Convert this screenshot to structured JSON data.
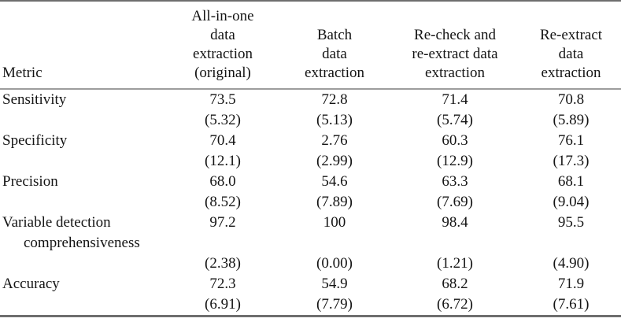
{
  "table": {
    "columns": [
      {
        "label": "Metric"
      },
      {
        "label": "All-in-one\ndata\nextraction\n(original)"
      },
      {
        "label": "Batch\ndata\nextraction"
      },
      {
        "label": "Re-check and\nre-extract data\nextraction"
      },
      {
        "label": "Re-extract\ndata\nextraction"
      }
    ],
    "rows": [
      {
        "cells": [
          "Sensitivity",
          "73.5",
          "72.8",
          "71.4",
          "70.8"
        ],
        "indent": false
      },
      {
        "cells": [
          "",
          "(5.32)",
          "(5.13)",
          "(5.74)",
          "(5.89)"
        ],
        "indent": false
      },
      {
        "cells": [
          "Specificity",
          "70.4",
          "2.76",
          "60.3",
          "76.1"
        ],
        "indent": false
      },
      {
        "cells": [
          "",
          "(12.1)",
          "(2.99)",
          "(12.9)",
          "(17.3)"
        ],
        "indent": false
      },
      {
        "cells": [
          "Precision",
          "68.0",
          "54.6",
          "63.3",
          "68.1"
        ],
        "indent": false
      },
      {
        "cells": [
          "",
          "(8.52)",
          "(7.89)",
          "(7.69)",
          "(9.04)"
        ],
        "indent": false
      },
      {
        "cells": [
          "Variable detection",
          "97.2",
          "100",
          "98.4",
          "95.5"
        ],
        "indent": false
      },
      {
        "cells": [
          "comprehensiveness",
          "",
          "",
          "",
          ""
        ],
        "indent": true
      },
      {
        "cells": [
          "",
          "(2.38)",
          "(0.00)",
          "(1.21)",
          "(4.90)"
        ],
        "indent": false
      },
      {
        "cells": [
          "Accuracy",
          "72.3",
          "54.9",
          "68.2",
          "71.9"
        ],
        "indent": false
      },
      {
        "cells": [
          "",
          "(6.91)",
          "(7.79)",
          "(6.72)",
          "(7.61)"
        ],
        "indent": false
      }
    ]
  },
  "colors": {
    "background": "#ffffff",
    "text": "#141414",
    "rule_heavy": "#6e6e6e",
    "rule_light": "#9d9d9d"
  }
}
